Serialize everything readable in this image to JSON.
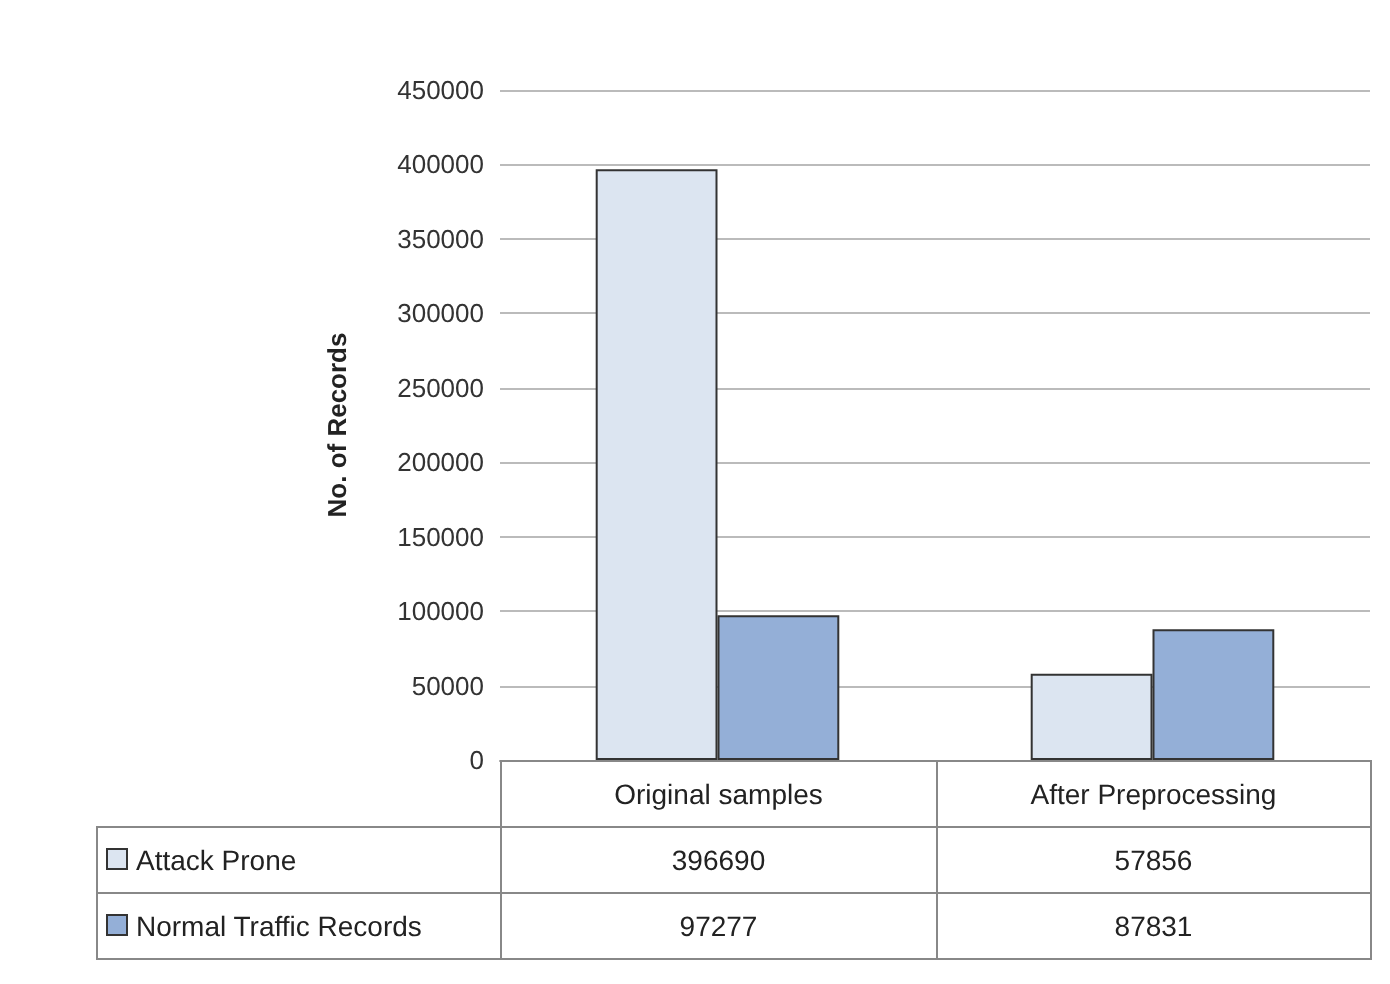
{
  "chart_data": {
    "type": "bar",
    "ylabel": "No. of Records",
    "categories": [
      "Original samples",
      "After Preprocessing"
    ],
    "series": [
      {
        "name": "Attack Prone",
        "color": "#dce5f1",
        "values": [
          396690,
          57856
        ]
      },
      {
        "name": "Normal Traffic Records",
        "color": "#94afd7",
        "values": [
          97277,
          87831
        ]
      }
    ],
    "ylim": [
      0,
      450000
    ],
    "yticks": [
      0,
      50000,
      100000,
      150000,
      200000,
      250000,
      300000,
      350000,
      400000,
      450000
    ],
    "grid": "y",
    "legend": "bottom",
    "data_labels": true
  }
}
